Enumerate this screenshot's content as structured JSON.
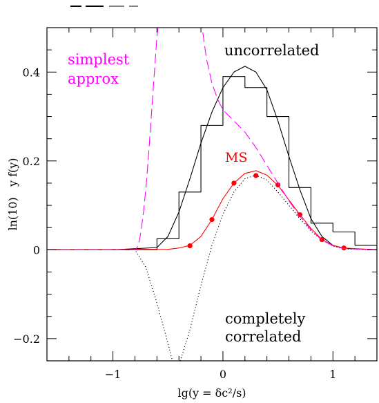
{
  "chart_data": {
    "type": "line",
    "title": "",
    "xlabel": "lg(y = δc²/s)",
    "ylabel": "ln(10)   y f(y)",
    "xlim": [
      -1.6,
      1.4
    ],
    "ylim": [
      -0.25,
      0.5
    ],
    "x_ticks": [
      -1,
      0,
      1
    ],
    "y_ticks": [
      -0.2,
      0,
      0.2,
      0.4
    ],
    "x_tick_labels": [
      "−1",
      "0",
      "1"
    ],
    "y_tick_labels": [
      "−0.2",
      "0",
      "0.2",
      "0.4"
    ],
    "grid": false,
    "legend": "none",
    "colors": {
      "black": "#000000",
      "red": "#ff0000",
      "magenta": "#ff00ff"
    },
    "annotations": [
      {
        "text": "simplest",
        "color": "#ff00ff"
      },
      {
        "text": "approx",
        "color": "#ff00ff"
      },
      {
        "text": "uncorrelated",
        "color": "#000000"
      },
      {
        "text": "MS",
        "color": "#ff0000"
      },
      {
        "text": "completely",
        "color": "#000000"
      },
      {
        "text": "correlated",
        "color": "#000000"
      }
    ],
    "series": [
      {
        "color": "#000000",
        "style": "solid",
        "x": [
          -1.6,
          -1.0,
          -0.6,
          -0.5,
          -0.4,
          -0.3,
          -0.2,
          -0.1,
          0.0,
          0.1,
          0.2,
          0.3,
          0.4,
          0.5,
          0.6,
          0.7,
          0.8,
          0.9,
          1.0,
          1.1,
          1.4
        ],
        "y": [
          0,
          0,
          0.005,
          0.03,
          0.085,
          0.16,
          0.24,
          0.31,
          0.365,
          0.4,
          0.413,
          0.4,
          0.36,
          0.29,
          0.21,
          0.135,
          0.07,
          0.03,
          0.01,
          0.003,
          0
        ]
      },
      {
        "color": "#000000",
        "style": "step",
        "x": [
          -1.6,
          -0.6,
          -0.4,
          -0.2,
          0.0,
          0.2,
          0.4,
          0.6,
          0.8,
          1.0,
          1.2,
          1.4
        ],
        "y": [
          0,
          0.025,
          0.13,
          0.28,
          0.39,
          0.365,
          0.3,
          0.14,
          0.06,
          0.04,
          0.01,
          0
        ]
      },
      {
        "color": "#000000",
        "style": "dotted",
        "x": [
          -1.6,
          -0.8,
          -0.7,
          -0.6,
          -0.5,
          -0.45,
          -0.4,
          -0.3,
          -0.2,
          -0.1,
          0.0,
          0.1,
          0.2,
          0.3,
          0.4,
          0.5,
          0.6,
          0.7,
          0.8,
          0.9,
          1.0,
          1.1,
          1.4
        ],
        "y": [
          0,
          0,
          -0.04,
          -0.12,
          -0.21,
          -0.26,
          -0.26,
          -0.18,
          -0.08,
          0.01,
          0.08,
          0.13,
          0.16,
          0.168,
          0.157,
          0.13,
          0.1,
          0.07,
          0.042,
          0.022,
          0.008,
          0.002,
          0
        ]
      },
      {
        "color": "#ff0000",
        "style": "solid",
        "markers": false,
        "x": [
          -1.6,
          -0.5,
          -0.4,
          -0.3,
          -0.2,
          -0.1,
          0.0,
          0.1,
          0.2,
          0.3,
          0.4,
          0.5,
          0.6,
          0.7,
          0.8,
          0.9,
          1.0,
          1.1,
          1.4
        ],
        "y": [
          0,
          0.001,
          0.004,
          0.01,
          0.03,
          0.068,
          0.115,
          0.15,
          0.172,
          0.178,
          0.168,
          0.145,
          0.112,
          0.079,
          0.048,
          0.023,
          0.01,
          0.004,
          0
        ]
      },
      {
        "color": "#ff0000",
        "style": "points",
        "x": [
          -0.3,
          -0.1,
          0.1,
          0.3,
          0.5,
          0.7,
          0.9,
          1.1
        ],
        "y": [
          0.009,
          0.068,
          0.15,
          0.167,
          0.146,
          0.079,
          0.023,
          0.004
        ]
      },
      {
        "color": "#ff00ff",
        "style": "dashed",
        "x": [
          -1.6,
          -0.8,
          -0.78,
          -0.76,
          -0.74,
          -0.72,
          -0.7,
          -0.68,
          -0.66,
          -0.64,
          -0.62,
          -0.6,
          -0.58
        ],
        "y": [
          0,
          0,
          0.005,
          0.02,
          0.05,
          0.09,
          0.14,
          0.2,
          0.27,
          0.34,
          0.41,
          0.48,
          0.52
        ]
      },
      {
        "color": "#ff00ff",
        "style": "dashed",
        "x": [
          -0.2,
          -0.15,
          -0.1,
          -0.05,
          0.0,
          0.1,
          0.2,
          0.3,
          0.4,
          0.5,
          0.6,
          0.7,
          0.8,
          0.9,
          1.0,
          1.1,
          1.4
        ],
        "y": [
          0.52,
          0.43,
          0.375,
          0.34,
          0.315,
          0.29,
          0.265,
          0.23,
          0.19,
          0.15,
          0.11,
          0.075,
          0.045,
          0.022,
          0.009,
          0.003,
          0
        ]
      }
    ]
  }
}
